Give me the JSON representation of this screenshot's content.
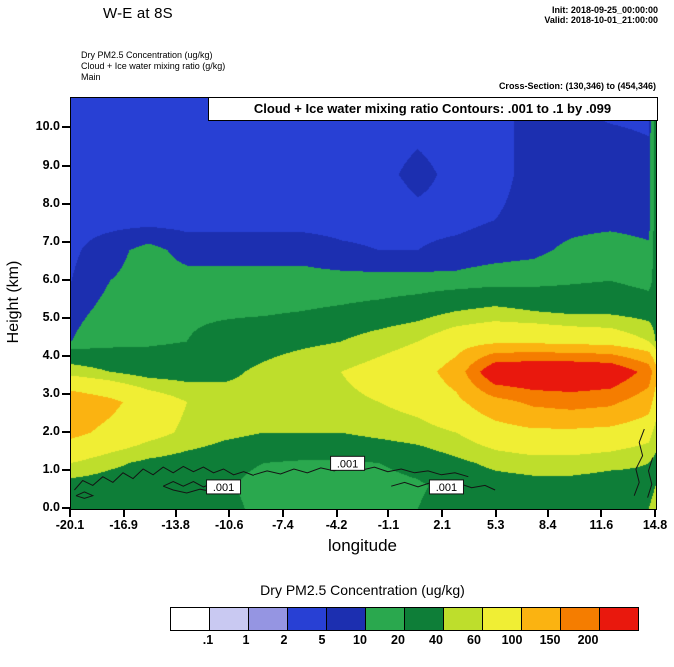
{
  "header": {
    "title": "W-E at 8S",
    "init": "Init: 2018-09-25_00:00:00",
    "valid": "Valid: 2018-10-01_21:00:00",
    "field1": "Dry PM2.5 Concentration   (ug/kg)",
    "field2": "Cloud + Ice water mixing ratio  (g/kg)",
    "model": "Main",
    "cross_section": "Cross-Section: (130,346) to (454,346)"
  },
  "plot": {
    "contour_banner": "Cloud + Ice water mixing ratio Contours: .001 to .1 by .099"
  },
  "legend": {
    "title": "Dry PM2.5 Concentration  (ug/kg)",
    "boundary_labels": [
      ".1",
      "1",
      "2",
      "5",
      "10",
      "20",
      "40",
      "60",
      "100",
      "150",
      "200"
    ],
    "colors": [
      "#ffffff",
      "#c9c9f2",
      "#9595e2",
      "#2840d4",
      "#1c2fb0",
      "#2aa84e",
      "#0e7e38",
      "#bede2c",
      "#f0ee34",
      "#fbb311",
      "#f57d00",
      "#e9180d"
    ]
  },
  "chart_data": {
    "type": "heatmap",
    "title": "Dry PM2.5 Concentration (ug/kg) west-east vertical cross-section at 8S with Cloud + Ice water mixing ratio contours",
    "xlabel": "longitude",
    "ylabel": "Height (km)",
    "xlim": [
      -20.1,
      14.8
    ],
    "ylim": [
      0,
      10.8
    ],
    "x_ticks": [
      "-20.1",
      "-16.9",
      "-13.8",
      "-10.6",
      "-7.4",
      "-4.2",
      "-1.1",
      "2.1",
      "5.3",
      "8.4",
      "11.6",
      "14.8"
    ],
    "y_ticks": [
      "0.0",
      "1.0",
      "2.0",
      "3.0",
      "4.0",
      "5.0",
      "6.0",
      "7.0",
      "8.0",
      "9.0",
      "10.0"
    ],
    "levels_ugkg": [
      0.1,
      1,
      2,
      5,
      10,
      20,
      40,
      60,
      100,
      150,
      200
    ],
    "grid_lon": [
      -20.1,
      -17.8,
      -15.5,
      -13.2,
      -10.9,
      -8.6,
      -6.3,
      -4.0,
      -1.7,
      0.6,
      2.9,
      5.2,
      7.5,
      9.8,
      12.1,
      14.4,
      14.8
    ],
    "grid_km": [
      0.0,
      0.6,
      1.2,
      2.0,
      2.8,
      3.6,
      4.4,
      5.2,
      6.0,
      6.8,
      7.6,
      8.8,
      10.8
    ],
    "values_ugkg": [
      [
        35,
        30,
        32,
        30,
        25,
        15,
        12,
        12,
        15,
        20,
        28,
        32,
        35,
        35,
        32,
        40,
        45
      ],
      [
        30,
        28,
        30,
        28,
        22,
        14,
        12,
        12,
        15,
        18,
        25,
        30,
        32,
        32,
        30,
        35,
        40
      ],
      [
        60,
        45,
        35,
        30,
        25,
        20,
        18,
        18,
        20,
        25,
        35,
        45,
        50,
        50,
        45,
        40,
        35
      ],
      [
        110,
        90,
        70,
        55,
        45,
        40,
        40,
        40,
        45,
        50,
        60,
        80,
        90,
        90,
        85,
        70,
        50
      ],
      [
        130,
        110,
        80,
        60,
        50,
        45,
        50,
        55,
        60,
        70,
        90,
        130,
        160,
        170,
        160,
        120,
        80
      ],
      [
        50,
        40,
        30,
        30,
        35,
        45,
        55,
        60,
        70,
        80,
        120,
        250,
        260,
        260,
        250,
        180,
        120
      ],
      [
        10,
        15,
        18,
        20,
        25,
        30,
        35,
        40,
        50,
        60,
        80,
        90,
        90,
        85,
        80,
        60,
        40
      ],
      [
        8,
        12,
        15,
        18,
        18,
        18,
        20,
        22,
        25,
        30,
        40,
        45,
        40,
        35,
        35,
        30,
        30
      ],
      [
        5,
        10,
        12,
        12,
        12,
        12,
        12,
        12,
        12,
        12,
        12,
        14,
        15,
        18,
        20,
        15,
        25
      ],
      [
        4,
        8,
        12,
        8,
        8,
        8,
        8,
        6,
        5,
        5,
        6,
        7,
        8,
        12,
        15,
        12,
        25
      ],
      [
        3,
        3,
        3,
        3,
        3,
        3,
        3,
        3,
        3,
        4,
        4,
        5,
        6,
        7,
        7,
        6,
        25
      ],
      [
        3,
        3,
        3,
        3,
        3,
        3,
        3,
        3,
        4,
        6,
        4,
        4,
        6,
        7,
        7,
        6,
        25
      ],
      [
        3,
        3,
        3,
        3,
        3,
        3,
        3,
        3,
        3,
        3,
        3,
        4,
        6,
        5,
        4,
        4,
        25
      ]
    ],
    "cloud_ice_contours": {
      "levels_gkg": [
        0.001,
        0.1
      ],
      "label": ".001",
      "polylines_lon_km": [
        [
          [
            -19.9,
            0.5
          ],
          [
            -19.4,
            0.75
          ],
          [
            -18.8,
            0.62
          ],
          [
            -18.2,
            0.85
          ],
          [
            -17.6,
            0.7
          ],
          [
            -17.0,
            0.95
          ],
          [
            -16.4,
            0.8
          ],
          [
            -15.8,
            1.05
          ],
          [
            -15.2,
            0.9
          ],
          [
            -14.6,
            1.1
          ],
          [
            -14.0,
            0.95
          ],
          [
            -13.4,
            1.12
          ],
          [
            -12.8,
            0.98
          ],
          [
            -12.2,
            1.1
          ],
          [
            -11.6,
            0.95
          ],
          [
            -11.0,
            1.05
          ],
          [
            -10.4,
            0.9
          ],
          [
            -9.8,
            0.98
          ],
          [
            -9.2,
            0.88
          ]
        ],
        [
          [
            -14.6,
            0.6
          ],
          [
            -14.0,
            0.72
          ],
          [
            -13.4,
            0.6
          ],
          [
            -12.8,
            0.72
          ],
          [
            -12.2,
            0.58
          ],
          [
            -11.6,
            0.68
          ],
          [
            -11.0,
            0.55
          ],
          [
            -11.6,
            0.45
          ],
          [
            -12.4,
            0.52
          ],
          [
            -13.2,
            0.42
          ],
          [
            -14.0,
            0.5
          ],
          [
            -14.6,
            0.6
          ]
        ],
        [
          [
            -9.2,
            0.9
          ],
          [
            -8.4,
            1.0
          ],
          [
            -7.6,
            0.92
          ],
          [
            -6.8,
            1.05
          ],
          [
            -6.0,
            0.95
          ],
          [
            -5.2,
            1.08
          ],
          [
            -4.4,
            1.0
          ],
          [
            -3.6,
            1.12
          ],
          [
            -2.8,
            1.02
          ],
          [
            -2.0,
            1.1
          ],
          [
            -1.2,
            0.98
          ],
          [
            -0.4,
            1.05
          ],
          [
            0.4,
            0.95
          ],
          [
            1.2,
            1.0
          ],
          [
            2.0,
            0.9
          ],
          [
            2.8,
            0.95
          ],
          [
            3.6,
            0.85
          ]
        ],
        [
          [
            -1.0,
            0.6
          ],
          [
            -0.2,
            0.7
          ],
          [
            0.6,
            0.58
          ],
          [
            1.4,
            0.7
          ],
          [
            2.2,
            0.58
          ],
          [
            3.0,
            0.68
          ],
          [
            3.8,
            0.56
          ],
          [
            4.6,
            0.62
          ],
          [
            5.2,
            0.5
          ]
        ],
        [
          [
            13.5,
            0.35
          ],
          [
            13.8,
            0.7
          ],
          [
            13.6,
            1.05
          ],
          [
            14.0,
            1.4
          ],
          [
            13.8,
            1.75
          ],
          [
            14.1,
            2.1
          ]
        ],
        [
          [
            14.3,
            0.3
          ],
          [
            14.55,
            0.65
          ],
          [
            14.35,
            1.0
          ],
          [
            14.6,
            1.35
          ]
        ],
        [
          [
            -19.8,
            0.35
          ],
          [
            -19.3,
            0.45
          ],
          [
            -18.8,
            0.35
          ],
          [
            -19.3,
            0.28
          ],
          [
            -19.8,
            0.35
          ]
        ]
      ],
      "label_points_lon_km": [
        [
          -11.0,
          0.58
        ],
        [
          -3.6,
          1.2
        ],
        [
          2.3,
          0.58
        ]
      ]
    }
  }
}
